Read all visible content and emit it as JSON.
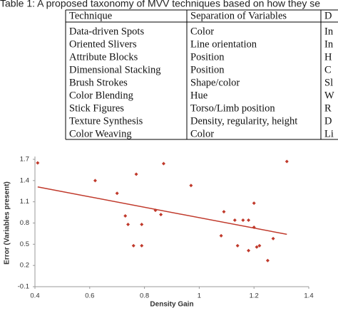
{
  "table": {
    "caption": "Table 1: A proposed taxonomy of MVV techniques based on how they se",
    "header": [
      "Technique",
      "Separation of Variables",
      "D"
    ],
    "rows": [
      [
        "Data-driven Spots",
        "Color",
        "In"
      ],
      [
        "Oriented Slivers",
        "Line orientation",
        "In"
      ],
      [
        "Attribute Blocks",
        "Position",
        "H"
      ],
      [
        "Dimensional Stacking",
        "Position",
        "C"
      ],
      [
        "Brush Strokes",
        "Shape/color",
        "Sl"
      ],
      [
        "Color Blending",
        "Hue",
        "W"
      ],
      [
        "Stick Figures",
        "Torso/Limb position",
        "R"
      ],
      [
        "Texture Synthesis",
        "Density, regularity, height",
        "D"
      ],
      [
        "Color Weaving",
        "Color",
        "Li"
      ]
    ]
  },
  "chart_data": {
    "type": "scatter",
    "xlabel": "Density Gain",
    "ylabel": "Error (Variables present)",
    "x": [
      0.41,
      0.62,
      0.7,
      0.77,
      0.87,
      0.97,
      0.73,
      0.74,
      0.76,
      0.79,
      0.79,
      0.84,
      0.86,
      1.09,
      1.08,
      1.13,
      1.16,
      1.14,
      1.18,
      1.18,
      1.2,
      1.2,
      1.21,
      1.22,
      1.25,
      1.27,
      1.32
    ],
    "values": [
      1.65,
      1.4,
      1.22,
      1.49,
      1.64,
      1.33,
      0.9,
      0.78,
      0.48,
      0.48,
      0.78,
      0.98,
      0.92,
      0.96,
      0.62,
      0.84,
      0.84,
      0.48,
      0.41,
      0.84,
      1.08,
      0.74,
      0.46,
      0.48,
      0.27,
      0.58,
      1.67
    ],
    "color": "#c0392b",
    "trendline": {
      "x": [
        0.41,
        1.32
      ],
      "values": [
        1.31,
        0.64
      ],
      "color": "#c0392b"
    },
    "xlim": [
      0.4,
      1.4
    ],
    "xticks": [
      0.4,
      0.6,
      0.8,
      1,
      1.2,
      1.4
    ],
    "ylim": [
      -0.1,
      1.7
    ],
    "yticks": [
      -0.1,
      0.2,
      0.5,
      0.8,
      1.1,
      1.4,
      1.7
    ]
  }
}
